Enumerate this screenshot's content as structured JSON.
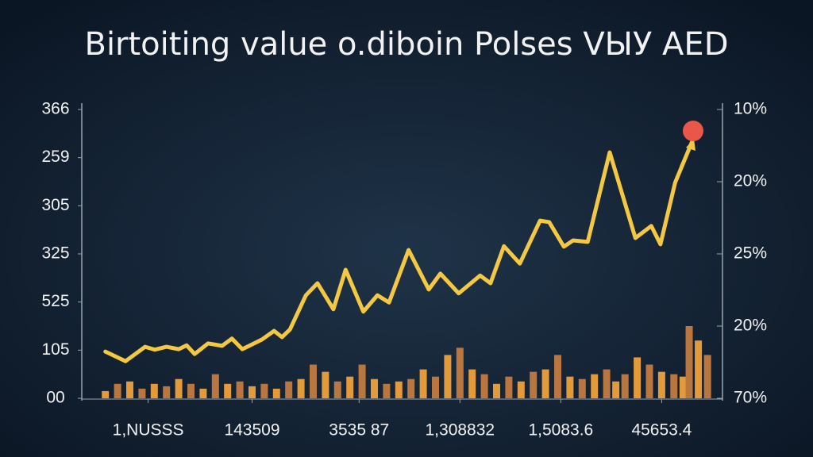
{
  "chart_data": {
    "type": "line-bar",
    "title": "Birtoiting value o.diboin Polses VЫУ AED",
    "xlim": [
      0,
      100
    ],
    "xticks": [
      {
        "value": 8,
        "label": "1,NUSSS"
      },
      {
        "value": 25,
        "label": "143509"
      },
      {
        "value": 42.5,
        "label": "3535 87"
      },
      {
        "value": 59,
        "label": "1,308832"
      },
      {
        "value": 75.5,
        "label": "1,5083.6"
      },
      {
        "value": 92,
        "label": "45653.4"
      }
    ],
    "ylim": [
      0,
      6
    ],
    "yticks": [
      {
        "value": 0,
        "label": "00"
      },
      {
        "value": 1,
        "label": "105"
      },
      {
        "value": 2,
        "label": "525"
      },
      {
        "value": 3,
        "label": "325"
      },
      {
        "value": 4,
        "label": "305"
      },
      {
        "value": 5,
        "label": "259"
      },
      {
        "value": 6,
        "label": "366"
      }
    ],
    "y2lim": [
      0,
      4
    ],
    "y2ticks": [
      {
        "value": 0,
        "label": "70%"
      },
      {
        "value": 1,
        "label": "20%"
      },
      {
        "value": 2,
        "label": "25%"
      },
      {
        "value": 3,
        "label": "20%"
      },
      {
        "value": 4,
        "label": "10%"
      }
    ],
    "series": [
      {
        "type": "bar",
        "color": "#e29a3a",
        "x": [
          1,
          3,
          5,
          7,
          9,
          11,
          13,
          15,
          17,
          19,
          21,
          23,
          25,
          27,
          29,
          31,
          33,
          35,
          37,
          39,
          41,
          43,
          45,
          47,
          49,
          51,
          53,
          55,
          57,
          59,
          61,
          63,
          65,
          67,
          69,
          71,
          73,
          75,
          77,
          79,
          81,
          83,
          84.5,
          86,
          88,
          90,
          92,
          94,
          95.5,
          96.5,
          98,
          99.5
        ],
        "values": [
          0.15,
          0.3,
          0.35,
          0.2,
          0.3,
          0.25,
          0.4,
          0.3,
          0.2,
          0.5,
          0.3,
          0.35,
          0.25,
          0.3,
          0.2,
          0.35,
          0.4,
          0.7,
          0.55,
          0.35,
          0.45,
          0.7,
          0.4,
          0.3,
          0.35,
          0.4,
          0.6,
          0.45,
          0.9,
          1.05,
          0.6,
          0.5,
          0.3,
          0.45,
          0.35,
          0.55,
          0.6,
          0.9,
          0.45,
          0.4,
          0.5,
          0.6,
          0.35,
          0.5,
          0.85,
          0.7,
          0.55,
          0.5,
          0.45,
          1.5,
          1.2,
          0.9
        ],
        "alt_color": "#b9773f"
      },
      {
        "type": "line",
        "color": "#f5c842",
        "x": [
          1.0,
          4.3,
          7.5,
          9.1,
          11.0,
          13.0,
          14.3,
          15.6,
          17.8,
          20.1,
          21.7,
          23.4,
          26.6,
          28.6,
          29.9,
          31.2,
          33.8,
          35.7,
          38.3,
          40.3,
          43.2,
          45.5,
          47.4,
          50.6,
          53.9,
          55.8,
          58.8,
          62.3,
          64.0,
          66.2,
          68.8,
          72.1,
          73.6,
          76.0,
          77.5,
          79.9,
          83.5,
          87.7,
          90.3,
          91.8,
          94.2,
          97.0
        ],
        "values": [
          0.97,
          0.77,
          1.07,
          1.01,
          1.07,
          1.02,
          1.1,
          0.92,
          1.14,
          1.09,
          1.24,
          1.02,
          1.22,
          1.4,
          1.27,
          1.43,
          2.14,
          2.39,
          1.85,
          2.67,
          1.8,
          2.14,
          1.99,
          3.08,
          2.26,
          2.59,
          2.18,
          2.55,
          2.39,
          3.16,
          2.8,
          3.69,
          3.66,
          3.15,
          3.28,
          3.25,
          5.11,
          3.33,
          3.58,
          3.2,
          4.48,
          5.34
        ]
      }
    ]
  }
}
